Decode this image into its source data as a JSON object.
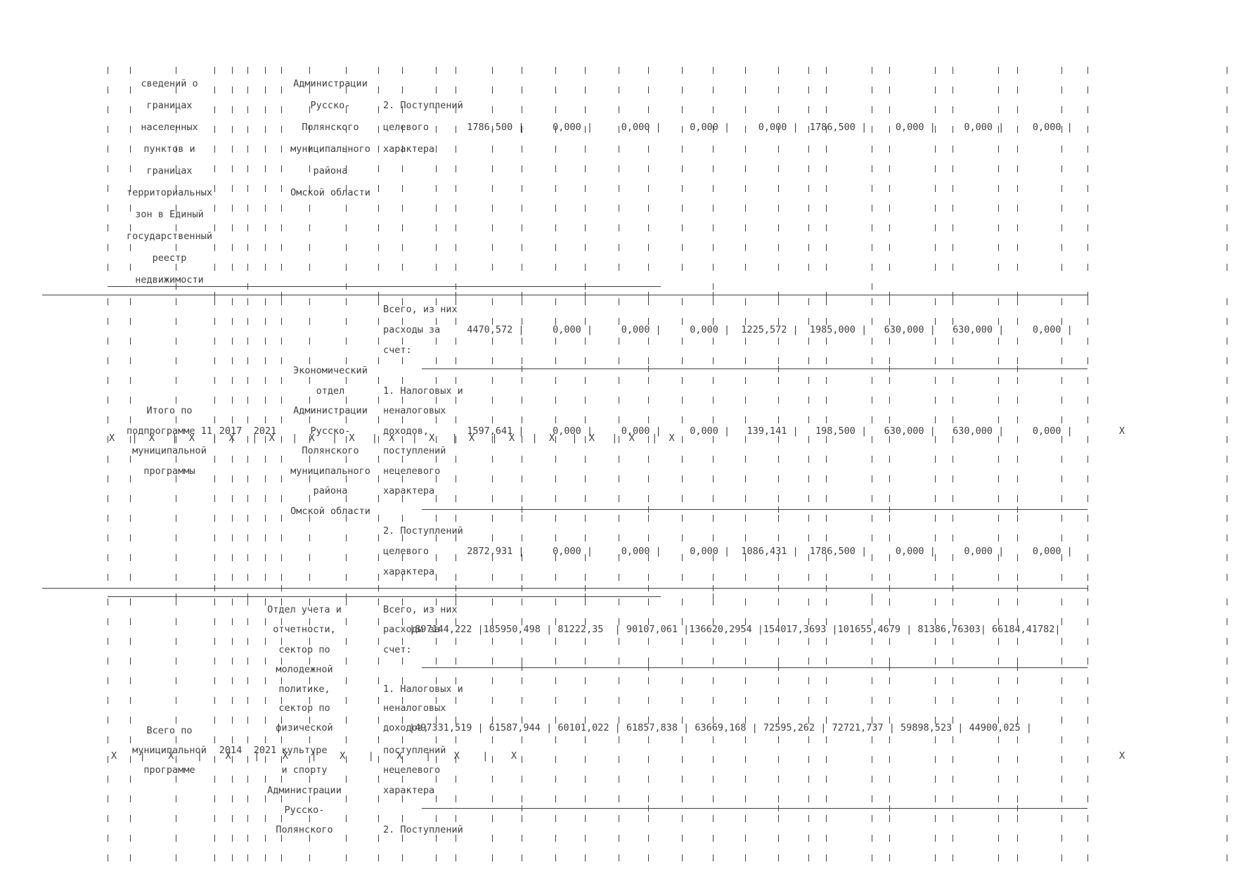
{
  "page": {
    "background": "#ffffff",
    "text_color": "#3f3f3f",
    "line_color": "#3f3f3f"
  },
  "top_row": {
    "name_lines": [
      "сведений о",
      "границах",
      "населенных",
      "пунктов и",
      "границах",
      "территориальных",
      "зон в Единый",
      "государственный",
      "реестр",
      "недвижимости"
    ],
    "executor_lines": [
      "Администрации",
      "Русско-",
      "Полянского",
      "муниципального",
      "района",
      "Омской области"
    ],
    "source_lines": [
      "2. Поступлений",
      "целевого",
      "характера"
    ],
    "values": [
      "1786,500",
      "0,000",
      "0,000",
      "0,000",
      "0,000",
      "1786,500",
      "0,000",
      "0,000",
      "0,000"
    ],
    "values_text": "  1786,500 |     0,000 |     0,000 |     0,000 |     0,000 |  1786,500 |     0,000 |     0,000 |     0,000 |"
  },
  "subtotal_row": {
    "name_lines": [
      "Итого по",
      "подпрограмме 11",
      "муниципальной",
      "программы"
    ],
    "term_start": "2017",
    "term_end": "2021",
    "executor_lines": [
      "Экономический",
      "отдел",
      "Администрации",
      "Русско-",
      "Полянского",
      "муниципального",
      "района",
      "Омской области"
    ],
    "source_total_lines": [
      "Всего, из них",
      "расходы за",
      "счет:"
    ],
    "total_values": [
      "4470,572",
      "0,000",
      "0,000",
      "0,000",
      "1225,572",
      "1985,000",
      "630,000",
      "630,000",
      "0,000"
    ],
    "total_values_text": "  4470,572 |     0,000 |     0,000 |     0,000 |  1225,572 |  1985,000 |   630,000 |   630,000 |     0,000 |",
    "source1_lines": [
      "1. Налоговых и",
      "неналоговых",
      "доходов,",
      "поступлений",
      "нецелевого",
      "характера"
    ],
    "values1": [
      "1597,641",
      "0,000",
      "0,000",
      "0,000",
      "139,141",
      "198,500",
      "630,000",
      "630,000",
      "0,000"
    ],
    "values1_text": "  1597,641 |     0,000 |     0,000 |     0,000 |   139,141 |   198,500 |   630,000 |   630,000 |     0,000 |",
    "x_row": "X   |  X   |  X   |  X   |  X   |  X   |  X   |  X   |  X   |  X   |  X   |  X   |  X   |  X   |  X",
    "x_right": "X",
    "source2_lines": [
      "2. Поступлений",
      "целевого",
      "характера"
    ],
    "values2": [
      "2872,931",
      "0,000",
      "0,000",
      "0,000",
      "1086,431",
      "1786,500",
      "0,000",
      "0,000",
      "0,000"
    ],
    "values2_text": "  2872,931 |     0,000 |     0,000 |     0,000 |  1086,431 |  1786,500 |     0,000 |     0,000 |     0,000 |"
  },
  "grand_total_row": {
    "name_lines": [
      "Всего по",
      "муниципальной",
      "программе"
    ],
    "term_start": "2014",
    "term_end": "2021",
    "executor_lines": [
      "Отдел учета и",
      "отчетности,",
      "сектор по",
      "молодежной",
      "политике,",
      "сектор по",
      "физической",
      "культуре",
      "и спорту",
      "Администрации",
      "Русско-",
      "Полянского"
    ],
    "source_total_lines": [
      "Всего, из них",
      "расходы за",
      "счет:"
    ],
    "total_values": [
      "897144,222",
      "185950,498",
      "81222,35",
      "90107,061",
      "136620,2954",
      "154017,3693",
      "101655,4679",
      "81386,76303",
      "66184,41782"
    ],
    "total_values_text": "|897144,222 |185950,498 | 81222,35  | 90107,061 |136620,2954 |154017,3693 |101655,4679 | 81386,76303| 66184,41782|",
    "source1_lines": [
      "1. Налоговых и",
      "неналоговых",
      "доходов,",
      "поступлений",
      "нецелевого",
      "характера"
    ],
    "values1": [
      "497331,519",
      "61587,944",
      "60101,022",
      "61857,838",
      "63669,168",
      "72595,262",
      "72721,737",
      "59898,523",
      "44900,025"
    ],
    "values1_text": "|497331,519 | 61587,944 | 60101,022 | 61857,838 | 63669,168 | 72595,262 | 72721,737 | 59898,523 | 44900,025 |",
    "x_row": "X    |    X    |    X    |    X    |    X    |    X    |    X    |    X",
    "x_right": "X",
    "source2_lines": [
      "2. Поступлений"
    ]
  }
}
